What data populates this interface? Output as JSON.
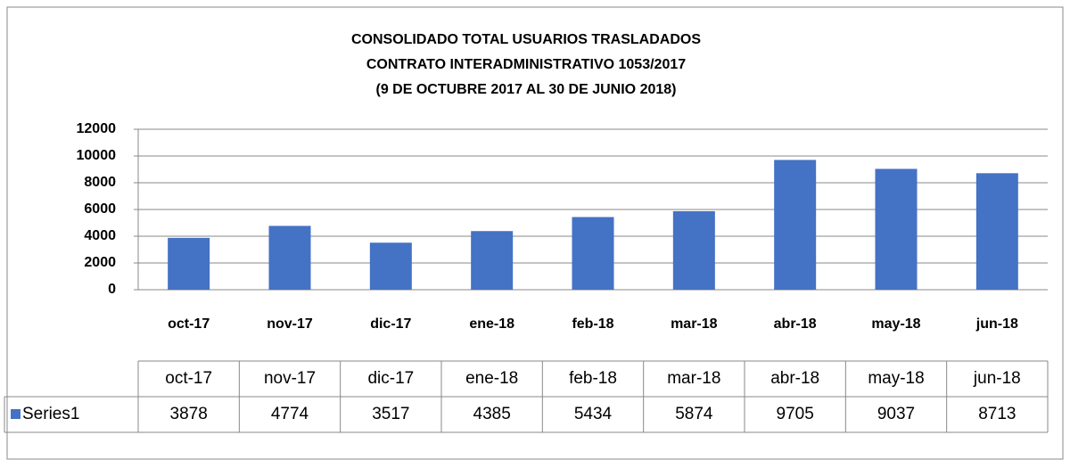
{
  "chart_data": {
    "type": "bar",
    "title": [
      "CONSOLIDADO  TOTAL USUARIOS TRASLADADOS",
      "CONTRATO INTERADMINISTRATIVO 1053/2017",
      "(9 DE OCTUBRE 2017 AL 30 DE JUNIO 2018)"
    ],
    "categories": [
      "oct-17",
      "nov-17",
      "dic-17",
      "ene-18",
      "feb-18",
      "mar-18",
      "abr-18",
      "may-18",
      "jun-18"
    ],
    "series": [
      {
        "name": "Series1",
        "color": "#4472c4",
        "values": [
          3878,
          4774,
          3517,
          4385,
          5434,
          5874,
          9705,
          9037,
          8713
        ]
      }
    ],
    "ylim": [
      0,
      12000
    ],
    "yticks": [
      0,
      2000,
      4000,
      6000,
      8000,
      10000,
      12000
    ],
    "grid": true,
    "data_table": true
  }
}
